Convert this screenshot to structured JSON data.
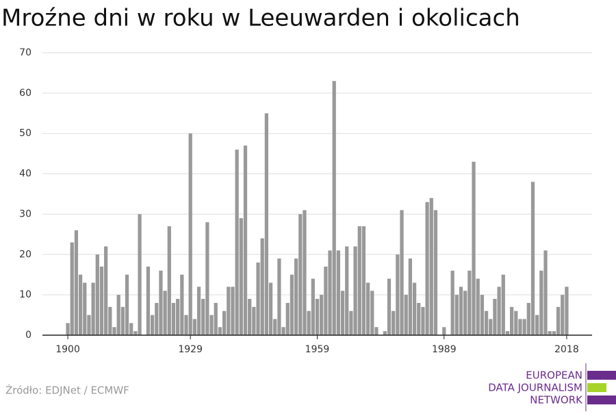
{
  "chart_data": {
    "type": "bar",
    "title": "Mroźne dni w roku w Leeuwarden i okolicach",
    "source": "Źródło: EDJNet / ECMWF",
    "logo": [
      "EUROPEAN",
      "DATA JOURNALISM",
      "NETWORK"
    ],
    "color": "#999999",
    "grid": true,
    "x": [
      1900,
      1901,
      1902,
      1903,
      1904,
      1905,
      1906,
      1907,
      1908,
      1909,
      1910,
      1911,
      1912,
      1913,
      1914,
      1915,
      1916,
      1917,
      1918,
      1919,
      1920,
      1921,
      1922,
      1923,
      1924,
      1925,
      1926,
      1927,
      1928,
      1929,
      1930,
      1931,
      1932,
      1933,
      1934,
      1935,
      1936,
      1937,
      1938,
      1939,
      1940,
      1941,
      1942,
      1943,
      1944,
      1945,
      1946,
      1947,
      1948,
      1949,
      1950,
      1951,
      1952,
      1953,
      1954,
      1955,
      1956,
      1957,
      1958,
      1959,
      1960,
      1961,
      1962,
      1963,
      1964,
      1965,
      1966,
      1967,
      1968,
      1969,
      1970,
      1971,
      1972,
      1973,
      1974,
      1975,
      1976,
      1977,
      1978,
      1979,
      1980,
      1981,
      1982,
      1983,
      1984,
      1985,
      1986,
      1987,
      1988,
      1989,
      1990,
      1991,
      1992,
      1993,
      1994,
      1995,
      1996,
      1997,
      1998,
      1999,
      2000,
      2001,
      2002,
      2003,
      2004,
      2005,
      2006,
      2007,
      2008,
      2009,
      2010,
      2011,
      2012,
      2013,
      2014,
      2015,
      2016,
      2017,
      2018
    ],
    "values": [
      3,
      23,
      26,
      15,
      13,
      5,
      13,
      20,
      17,
      22,
      7,
      2,
      10,
      7,
      15,
      3,
      1,
      30,
      0,
      17,
      5,
      8,
      16,
      11,
      27,
      8,
      9,
      15,
      5,
      50,
      4,
      12,
      9,
      28,
      5,
      8,
      2,
      6,
      12,
      12,
      46,
      29,
      47,
      9,
      7,
      18,
      24,
      55,
      13,
      4,
      19,
      2,
      8,
      15,
      19,
      30,
      31,
      6,
      14,
      9,
      10,
      17,
      21,
      63,
      21,
      11,
      22,
      6,
      22,
      27,
      27,
      13,
      11,
      2,
      0,
      1,
      14,
      6,
      20,
      31,
      10,
      19,
      13,
      8,
      7,
      33,
      34,
      31,
      0,
      2,
      0,
      16,
      10,
      12,
      11,
      16,
      43,
      14,
      10,
      6,
      4,
      9,
      12,
      15,
      1,
      7,
      6,
      4,
      4,
      8,
      38,
      5,
      16,
      21,
      1,
      1,
      7,
      10,
      12
    ],
    "xlim": [
      1894,
      2024
    ],
    "xticks": [
      1900,
      1929,
      1959,
      1989,
      2018
    ],
    "ylim": [
      0,
      70
    ],
    "yticks": [
      0,
      10,
      20,
      30,
      40,
      50,
      60,
      70
    ]
  }
}
